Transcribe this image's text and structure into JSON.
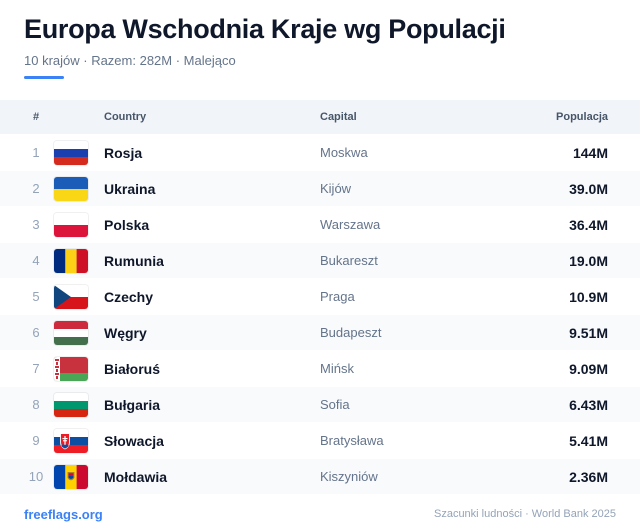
{
  "title": "Europa Wschodnia Kraje wg Populacji",
  "subtitle": "10 krajów · Razem: 282M · Malejąco",
  "accent_color": "#3b82f6",
  "columns": {
    "num": "#",
    "country": "Country",
    "capital": "Capital",
    "population": "Populacja"
  },
  "rows": [
    {
      "num": "1",
      "country": "Rosja",
      "capital": "Moskwa",
      "population": "144M",
      "flag": "russia-flag-icon"
    },
    {
      "num": "2",
      "country": "Ukraina",
      "capital": "Kijów",
      "population": "39.0M",
      "flag": "ukraine-flag-icon"
    },
    {
      "num": "3",
      "country": "Polska",
      "capital": "Warszawa",
      "population": "36.4M",
      "flag": "poland-flag-icon"
    },
    {
      "num": "4",
      "country": "Rumunia",
      "capital": "Bukareszt",
      "population": "19.0M",
      "flag": "romania-flag-icon"
    },
    {
      "num": "5",
      "country": "Czechy",
      "capital": "Praga",
      "population": "10.9M",
      "flag": "czechia-flag-icon"
    },
    {
      "num": "6",
      "country": "Węgry",
      "capital": "Budapeszt",
      "population": "9.51M",
      "flag": "hungary-flag-icon"
    },
    {
      "num": "7",
      "country": "Białoruś",
      "capital": "Mińsk",
      "population": "9.09M",
      "flag": "belarus-flag-icon"
    },
    {
      "num": "8",
      "country": "Bułgaria",
      "capital": "Sofia",
      "population": "6.43M",
      "flag": "bulgaria-flag-icon"
    },
    {
      "num": "9",
      "country": "Słowacja",
      "capital": "Bratysława",
      "population": "5.41M",
      "flag": "slovakia-flag-icon"
    },
    {
      "num": "10",
      "country": "Mołdawia",
      "capital": "Kiszyniów",
      "population": "2.36M",
      "flag": "moldova-flag-icon"
    }
  ],
  "footer": {
    "brand": "freeflags.org",
    "source": "Szacunki ludności · World Bank 2025"
  }
}
